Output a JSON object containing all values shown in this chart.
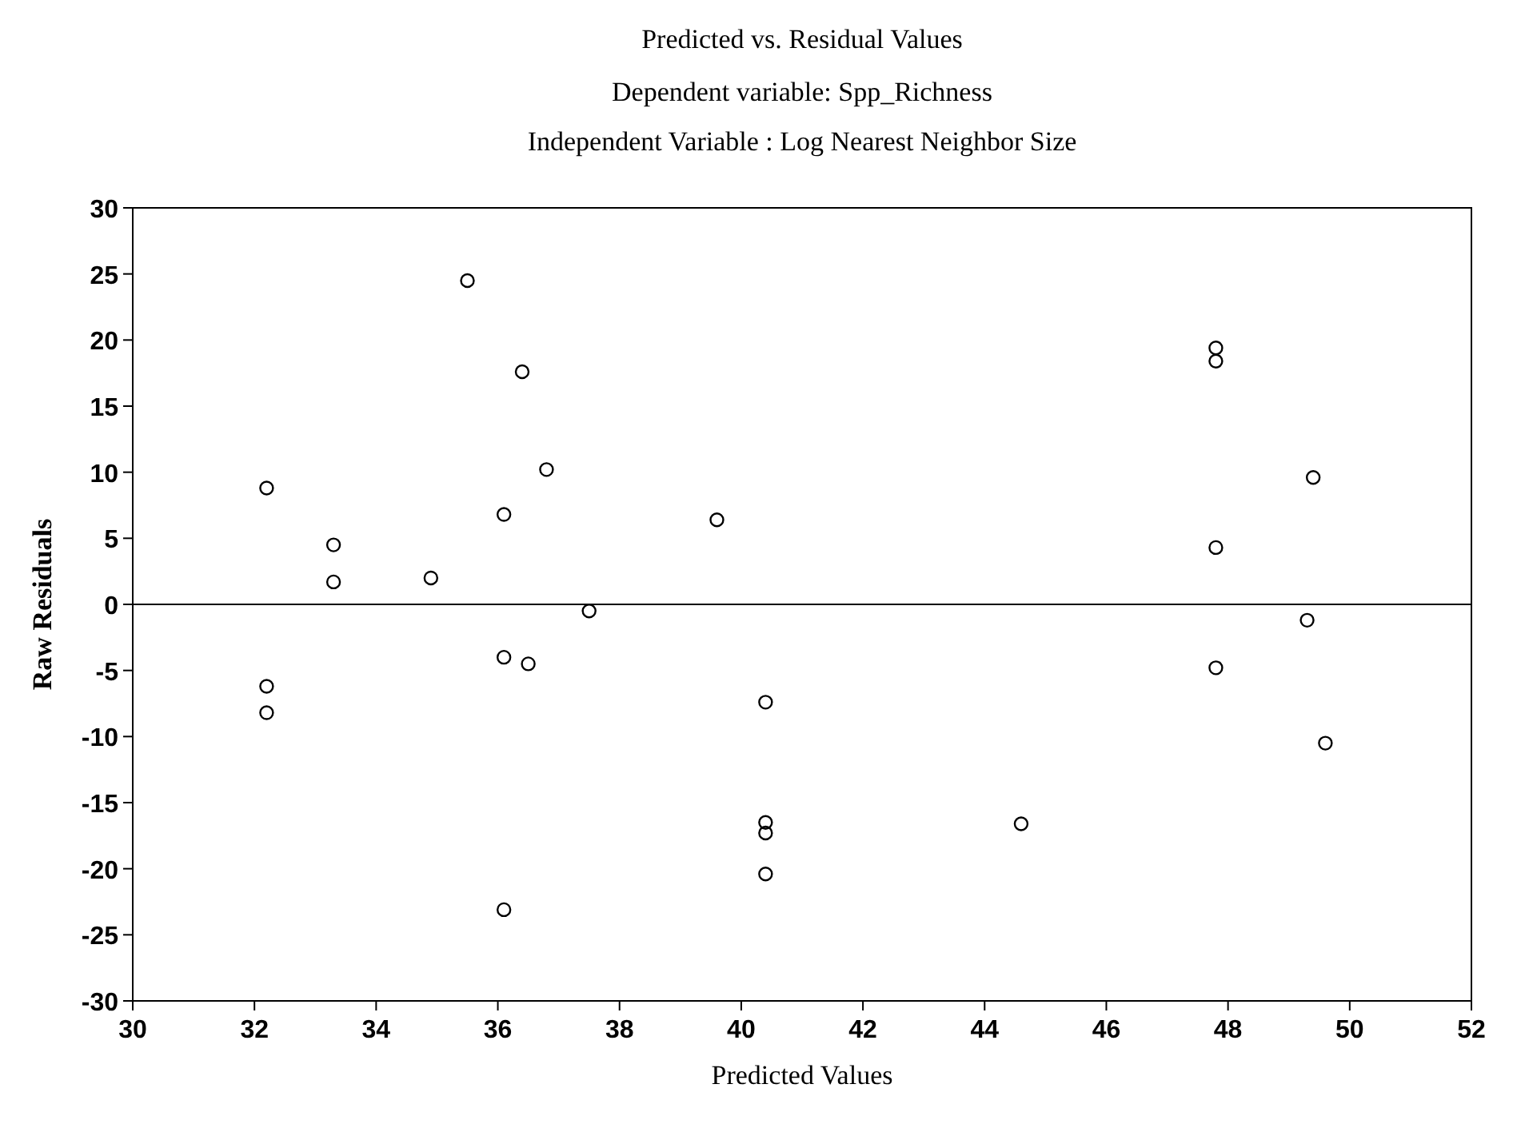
{
  "chart_data": {
    "type": "scatter",
    "title": "Predicted vs. Residual Values",
    "subtitle": "Dependent variable: Spp_Richness\nIndependent Variable : Log Nearest Neighbor Size",
    "xlabel": "Predicted Values",
    "ylabel": "Raw Residuals",
    "x": [
      32.2,
      32.2,
      32.2,
      33.3,
      33.3,
      34.9,
      35.5,
      36.1,
      36.1,
      36.1,
      36.4,
      36.5,
      36.8,
      37.5,
      39.6,
      40.4,
      40.4,
      40.4,
      40.4,
      44.6,
      47.8,
      47.8,
      47.8,
      47.8,
      49.3,
      49.4,
      49.6
    ],
    "values": [
      8.8,
      -6.2,
      -8.2,
      4.5,
      1.7,
      2.0,
      24.5,
      6.8,
      -4.0,
      -23.1,
      17.6,
      -4.5,
      10.2,
      -0.5,
      6.4,
      -7.4,
      -16.5,
      -17.3,
      -20.4,
      -16.6,
      19.4,
      18.4,
      4.3,
      -4.8,
      -1.2,
      9.6,
      -10.5
    ],
    "color": "#000000",
    "marker": "circle",
    "xlim": [
      30,
      52
    ],
    "xticks": [
      30,
      32,
      34,
      36,
      38,
      40,
      42,
      44,
      46,
      48,
      50,
      52
    ],
    "ylim": [
      -30,
      30
    ],
    "yticks": [
      -30,
      -25,
      -20,
      -15,
      -10,
      -5,
      0,
      5,
      10,
      15,
      20,
      25,
      30
    ],
    "ref_lines": [
      {
        "axis": "y",
        "value": 0,
        "color": "#000000"
      }
    ]
  }
}
